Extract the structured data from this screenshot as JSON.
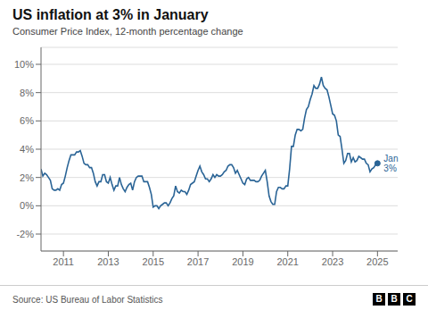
{
  "chart_data": {
    "type": "line",
    "title": "US inflation at 3% in January",
    "subtitle": "Consumer Price Index, 12-month percentage change",
    "source": "Source: US Bureau of Labor Statistics",
    "logo": [
      "B",
      "B",
      "C"
    ],
    "color": "#2a6496",
    "grid": true,
    "xlim": [
      2010.0,
      2025.9
    ],
    "xticks": [
      2011,
      2013,
      2015,
      2017,
      2019,
      2021,
      2023,
      2025
    ],
    "ylim": [
      -3.2,
      11.2
    ],
    "yticks": [
      {
        "value": -2,
        "label": "-2%"
      },
      {
        "value": 0,
        "label": "0%"
      },
      {
        "value": 2,
        "label": "2%"
      },
      {
        "value": 4,
        "label": "4%"
      },
      {
        "value": 6,
        "label": "6%"
      },
      {
        "value": 8,
        "label": "8%"
      },
      {
        "value": 10,
        "label": "10%"
      }
    ],
    "annotations": [
      {
        "text": "Jan\n3%",
        "x": 2025.0,
        "y": 3.0
      }
    ],
    "x": [
      2010.0,
      2010.083,
      2010.167,
      2010.25,
      2010.333,
      2010.417,
      2010.5,
      2010.583,
      2010.667,
      2010.75,
      2010.833,
      2010.917,
      2011.0,
      2011.083,
      2011.167,
      2011.25,
      2011.333,
      2011.417,
      2011.5,
      2011.583,
      2011.667,
      2011.75,
      2011.833,
      2011.917,
      2012.0,
      2012.083,
      2012.167,
      2012.25,
      2012.333,
      2012.417,
      2012.5,
      2012.583,
      2012.667,
      2012.75,
      2012.833,
      2012.917,
      2013.0,
      2013.083,
      2013.167,
      2013.25,
      2013.333,
      2013.417,
      2013.5,
      2013.583,
      2013.667,
      2013.75,
      2013.833,
      2013.917,
      2014.0,
      2014.083,
      2014.167,
      2014.25,
      2014.333,
      2014.417,
      2014.5,
      2014.583,
      2014.667,
      2014.75,
      2014.833,
      2014.917,
      2015.0,
      2015.083,
      2015.167,
      2015.25,
      2015.333,
      2015.417,
      2015.5,
      2015.583,
      2015.667,
      2015.75,
      2015.833,
      2015.917,
      2016.0,
      2016.083,
      2016.167,
      2016.25,
      2016.333,
      2016.417,
      2016.5,
      2016.583,
      2016.667,
      2016.75,
      2016.833,
      2016.917,
      2017.0,
      2017.083,
      2017.167,
      2017.25,
      2017.333,
      2017.417,
      2017.5,
      2017.583,
      2017.667,
      2017.75,
      2017.833,
      2017.917,
      2018.0,
      2018.083,
      2018.167,
      2018.25,
      2018.333,
      2018.417,
      2018.5,
      2018.583,
      2018.667,
      2018.75,
      2018.833,
      2018.917,
      2019.0,
      2019.083,
      2019.167,
      2019.25,
      2019.333,
      2019.417,
      2019.5,
      2019.583,
      2019.667,
      2019.75,
      2019.833,
      2019.917,
      2020.0,
      2020.083,
      2020.167,
      2020.25,
      2020.333,
      2020.417,
      2020.5,
      2020.583,
      2020.667,
      2020.75,
      2020.833,
      2020.917,
      2021.0,
      2021.083,
      2021.167,
      2021.25,
      2021.333,
      2021.417,
      2021.5,
      2021.583,
      2021.667,
      2021.75,
      2021.833,
      2021.917,
      2022.0,
      2022.083,
      2022.167,
      2022.25,
      2022.333,
      2022.417,
      2022.5,
      2022.583,
      2022.667,
      2022.75,
      2022.833,
      2022.917,
      2023.0,
      2023.083,
      2023.167,
      2023.25,
      2023.333,
      2023.417,
      2023.5,
      2023.583,
      2023.667,
      2023.75,
      2023.833,
      2023.917,
      2024.0,
      2024.083,
      2024.167,
      2024.25,
      2024.333,
      2024.417,
      2024.5,
      2024.583,
      2024.667,
      2024.75,
      2024.833,
      2024.917,
      2025.0
    ],
    "values": [
      2.6,
      2.1,
      2.3,
      2.2,
      2.0,
      1.8,
      1.2,
      1.1,
      1.1,
      1.2,
      1.1,
      1.5,
      1.6,
      2.1,
      2.7,
      3.2,
      3.6,
      3.6,
      3.6,
      3.8,
      3.8,
      3.9,
      3.5,
      3.0,
      2.9,
      2.9,
      2.7,
      2.7,
      2.3,
      1.7,
      1.4,
      1.7,
      1.7,
      2.2,
      2.2,
      1.7,
      1.6,
      2.0,
      1.5,
      1.1,
      1.4,
      1.4,
      2.0,
      1.5,
      1.2,
      1.0,
      1.3,
      1.5,
      1.6,
      1.1,
      1.7,
      2.0,
      2.1,
      2.1,
      2.1,
      1.7,
      1.7,
      1.7,
      1.3,
      0.8,
      -0.1,
      0.0,
      0.0,
      -0.2,
      0.0,
      0.1,
      0.2,
      0.2,
      0.0,
      0.2,
      0.5,
      0.7,
      1.4,
      1.0,
      0.9,
      1.1,
      1.0,
      1.0,
      0.8,
      1.1,
      1.5,
      1.6,
      1.7,
      2.1,
      2.5,
      2.8,
      2.4,
      2.2,
      1.9,
      1.9,
      1.7,
      1.9,
      2.2,
      2.0,
      2.2,
      2.1,
      2.1,
      2.2,
      2.4,
      2.5,
      2.8,
      2.9,
      2.9,
      2.7,
      2.3,
      2.5,
      2.2,
      1.9,
      1.6,
      1.5,
      1.9,
      2.0,
      1.8,
      1.8,
      1.8,
      1.7,
      1.7,
      1.8,
      2.1,
      2.3,
      2.5,
      1.7,
      0.7,
      0.3,
      0.1,
      0.1,
      1.0,
      1.3,
      1.3,
      1.2,
      1.2,
      1.4,
      1.4,
      2.6,
      4.2,
      4.2,
      5.0,
      5.4,
      5.4,
      5.3,
      5.4,
      6.2,
      6.8,
      7.0,
      7.5,
      7.9,
      8.5,
      8.3,
      8.3,
      8.6,
      9.1,
      8.5,
      8.3,
      8.2,
      7.7,
      7.1,
      6.5,
      6.4,
      6.0,
      5.0,
      4.9,
      4.0,
      3.0,
      3.2,
      3.7,
      3.7,
      3.1,
      3.4,
      3.1,
      3.2,
      3.5,
      3.4,
      3.3,
      3.3,
      3.0,
      2.9,
      2.4,
      2.6,
      2.7,
      2.9,
      3.0
    ]
  }
}
